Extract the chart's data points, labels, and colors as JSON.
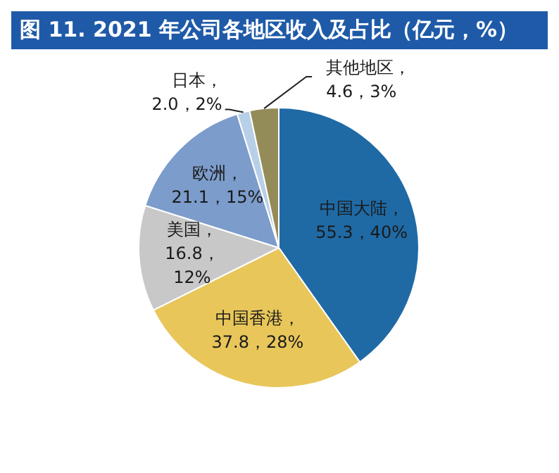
{
  "chart_data": {
    "type": "pie",
    "title": "图 11. 2021 年公司各地区收入及占比（亿元，%）",
    "categories": [
      "中国大陆",
      "中国香港",
      "美国",
      "欧洲",
      "日本",
      "其他地区"
    ],
    "values": [
      55.3,
      37.8,
      16.8,
      21.1,
      2.0,
      4.6
    ],
    "value_labels": [
      "，\n55.3，40%",
      "，\n37.8，28%",
      "，\n16.8，\n12%",
      "，\n21.1，15%",
      "，\n2.0，2%",
      "，\n4.6，3%"
    ],
    "colors": [
      "#1f6aa5",
      "#e8c65a",
      "#c8c8c8",
      "#7c9ccb",
      "#b8cfe8",
      "#948c58"
    ],
    "legend": false
  }
}
